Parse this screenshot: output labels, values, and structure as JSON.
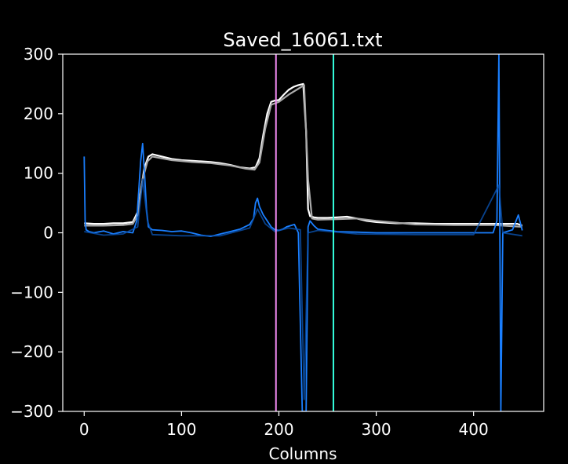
{
  "chart_data": {
    "type": "line",
    "title": "Saved_16061.txt",
    "xlabel": "Columns",
    "ylabel": "",
    "xlim": [
      -22,
      472
    ],
    "ylim": [
      -300,
      300
    ],
    "xticks": [
      0,
      100,
      200,
      300,
      400
    ],
    "yticks": [
      300,
      200,
      100,
      0,
      -100,
      -200,
      -300
    ],
    "xtick_labels": [
      "0",
      "100",
      "200",
      "300",
      "400"
    ],
    "ytick_labels": [
      "300",
      "200",
      "100",
      "0",
      "−100",
      "−200",
      "−300"
    ],
    "grid": false,
    "background": "#000000",
    "vlines": [
      {
        "x": 197,
        "color": "#ee88ee"
      },
      {
        "x": 256,
        "color": "#33ffdd"
      }
    ],
    "series": [
      {
        "color": "#ffffff",
        "x": [
          0,
          10,
          20,
          30,
          40,
          50,
          55,
          58,
          62,
          66,
          70,
          80,
          90,
          100,
          110,
          120,
          130,
          140,
          150,
          160,
          170,
          176,
          180,
          184,
          188,
          192,
          196,
          200,
          205,
          210,
          215,
          220,
          225,
          228,
          230,
          232,
          236,
          240,
          250,
          260,
          270,
          280,
          290,
          300,
          320,
          340,
          360,
          380,
          400,
          420,
          430,
          440,
          445,
          450
        ],
        "y": [
          16,
          15,
          15,
          16,
          16,
          18,
          35,
          70,
          110,
          128,
          132,
          128,
          124,
          122,
          121,
          120,
          119,
          117,
          114,
          110,
          108,
          110,
          125,
          165,
          200,
          220,
          222,
          223,
          232,
          240,
          245,
          248,
          250,
          170,
          40,
          28,
          26,
          25,
          25,
          26,
          27,
          24,
          20,
          18,
          16,
          16,
          15,
          15,
          15,
          15,
          15,
          15,
          15,
          12
        ]
      },
      {
        "color": "#aaaaaa",
        "x": [
          0,
          20,
          40,
          50,
          55,
          60,
          65,
          70,
          90,
          110,
          130,
          150,
          165,
          175,
          180,
          186,
          192,
          200,
          210,
          220,
          226,
          230,
          234,
          240,
          260,
          280,
          300,
          340,
          380,
          420,
          450
        ],
        "y": [
          12,
          12,
          13,
          15,
          30,
          90,
          120,
          128,
          122,
          119,
          117,
          113,
          108,
          106,
          118,
          175,
          215,
          220,
          232,
          242,
          248,
          90,
          24,
          22,
          23,
          24,
          20,
          14,
          13,
          13,
          10
        ]
      },
      {
        "color": "#1a7fff",
        "x": [
          0,
          1,
          2,
          5,
          10,
          20,
          30,
          40,
          50,
          54,
          58,
          60,
          62,
          64,
          66,
          70,
          80,
          90,
          100,
          110,
          120,
          130,
          140,
          150,
          160,
          170,
          174,
          176,
          178,
          180,
          184,
          188,
          192,
          196,
          200,
          204,
          208,
          212,
          216,
          220,
          224,
          226,
          228,
          230,
          232,
          236,
          240,
          250,
          260,
          280,
          300,
          320,
          340,
          360,
          380,
          400,
          420,
          424,
          426,
          428,
          430,
          440,
          446,
          450
        ],
        "y": [
          128,
          20,
          5,
          2,
          0,
          3,
          -2,
          2,
          0,
          20,
          120,
          150,
          100,
          40,
          10,
          5,
          4,
          2,
          3,
          0,
          -4,
          -6,
          -2,
          2,
          6,
          14,
          24,
          50,
          58,
          44,
          30,
          20,
          10,
          5,
          4,
          6,
          10,
          12,
          14,
          0,
          -300,
          -300,
          -300,
          10,
          20,
          12,
          6,
          4,
          2,
          1,
          0,
          0,
          0,
          0,
          0,
          0,
          0,
          20,
          300,
          -300,
          0,
          5,
          30,
          4
        ]
      },
      {
        "color": "#0a52b0",
        "x": [
          0,
          20,
          40,
          55,
          60,
          65,
          70,
          100,
          140,
          170,
          178,
          186,
          196,
          210,
          222,
          226,
          230,
          240,
          280,
          340,
          400,
          426,
          430,
          450
        ],
        "y": [
          2,
          -4,
          -2,
          10,
          90,
          20,
          -3,
          -5,
          -5,
          8,
          40,
          15,
          2,
          8,
          5,
          -280,
          0,
          4,
          -2,
          -3,
          -3,
          80,
          0,
          -5
        ]
      }
    ]
  }
}
